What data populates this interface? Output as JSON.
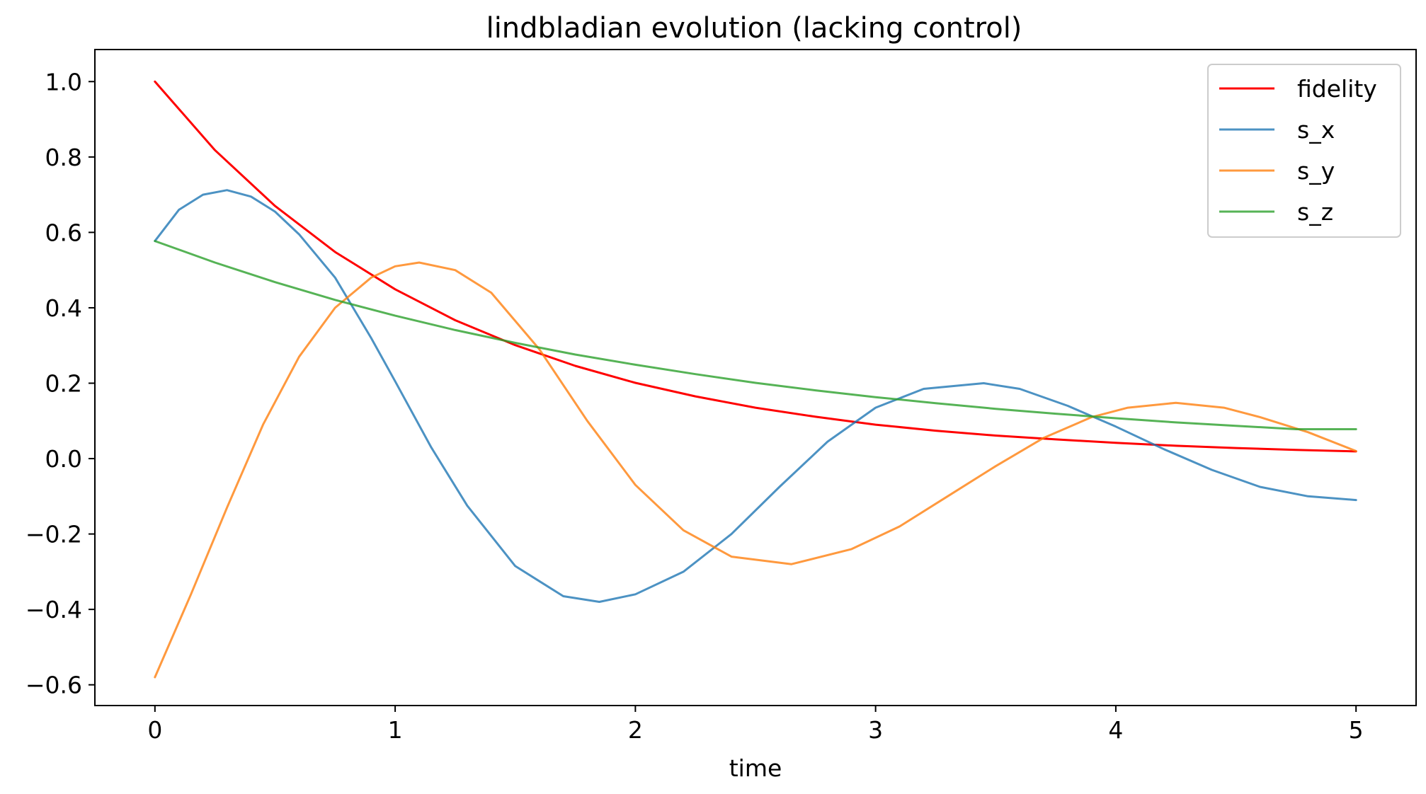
{
  "chart_data": {
    "type": "line",
    "title": "lindbladian evolution (lacking control)",
    "xlabel": "time",
    "ylabel": "",
    "xlim": [
      -0.25,
      5.25
    ],
    "ylim": [
      -0.655,
      1.085
    ],
    "xticks": [
      0,
      1,
      2,
      3,
      4,
      5
    ],
    "xtick_labels": [
      "0",
      "1",
      "2",
      "3",
      "4",
      "5"
    ],
    "yticks": [
      1.0,
      0.8,
      0.6,
      0.4,
      0.2,
      0.0,
      -0.2,
      -0.4,
      -0.6
    ],
    "ytick_labels": [
      "1.0",
      "0.8",
      "0.6",
      "0.4",
      "0.2",
      "0.0",
      "−0.2",
      "−0.4",
      "−0.6"
    ],
    "grid": false,
    "legend_position": "top-right",
    "series": [
      {
        "name": "fidelity",
        "color": "#ff0000",
        "x": [
          0,
          0.25,
          0.5,
          0.75,
          1.0,
          1.25,
          1.5,
          1.75,
          2.0,
          2.25,
          2.5,
          2.75,
          3.0,
          3.25,
          3.5,
          3.75,
          4.0,
          4.25,
          4.5,
          4.75,
          5.0
        ],
        "y": [
          1.0,
          0.818,
          0.67,
          0.548,
          0.449,
          0.367,
          0.301,
          0.246,
          0.201,
          0.165,
          0.135,
          0.111,
          0.09,
          0.074,
          0.061,
          0.051,
          0.042,
          0.034,
          0.028,
          0.023,
          0.019
        ]
      },
      {
        "name": "s_x",
        "color": "#1f77b4",
        "x": [
          0,
          0.1,
          0.2,
          0.3,
          0.4,
          0.5,
          0.6,
          0.75,
          0.9,
          1.0,
          1.15,
          1.3,
          1.5,
          1.7,
          1.85,
          2.0,
          2.2,
          2.4,
          2.6,
          2.8,
          3.0,
          3.2,
          3.45,
          3.6,
          3.8,
          4.0,
          4.2,
          4.4,
          4.6,
          4.8,
          5.0
        ],
        "y": [
          0.577,
          0.66,
          0.7,
          0.712,
          0.695,
          0.655,
          0.595,
          0.48,
          0.32,
          0.205,
          0.03,
          -0.125,
          -0.285,
          -0.365,
          -0.38,
          -0.36,
          -0.3,
          -0.2,
          -0.075,
          0.045,
          0.135,
          0.185,
          0.2,
          0.185,
          0.14,
          0.085,
          0.025,
          -0.03,
          -0.075,
          -0.1,
          -0.11
        ]
      },
      {
        "name": "s_y",
        "color": "#ff7f0e",
        "x": [
          0,
          0.15,
          0.3,
          0.45,
          0.6,
          0.75,
          0.9,
          1.0,
          1.1,
          1.25,
          1.4,
          1.6,
          1.8,
          2.0,
          2.2,
          2.4,
          2.65,
          2.9,
          3.1,
          3.3,
          3.5,
          3.7,
          3.9,
          4.05,
          4.25,
          4.45,
          4.6,
          4.8,
          5.0
        ],
        "y": [
          -0.58,
          -0.36,
          -0.13,
          0.09,
          0.27,
          0.4,
          0.48,
          0.51,
          0.52,
          0.5,
          0.44,
          0.29,
          0.1,
          -0.07,
          -0.19,
          -0.26,
          -0.28,
          -0.24,
          -0.18,
          -0.1,
          -0.02,
          0.055,
          0.11,
          0.135,
          0.148,
          0.135,
          0.11,
          0.07,
          0.02
        ]
      },
      {
        "name": "s_z",
        "color": "#2ca02c",
        "x": [
          0,
          0.25,
          0.5,
          0.75,
          1.0,
          1.25,
          1.5,
          1.75,
          2.0,
          2.25,
          2.5,
          2.75,
          3.0,
          3.25,
          3.5,
          3.75,
          4.0,
          4.25,
          4.5,
          4.75,
          5.0
        ],
        "y": [
          0.577,
          0.52,
          0.468,
          0.421,
          0.379,
          0.341,
          0.307,
          0.276,
          0.249,
          0.224,
          0.201,
          0.181,
          0.163,
          0.147,
          0.132,
          0.119,
          0.107,
          0.096,
          0.087,
          0.078,
          0.078
        ]
      }
    ]
  }
}
